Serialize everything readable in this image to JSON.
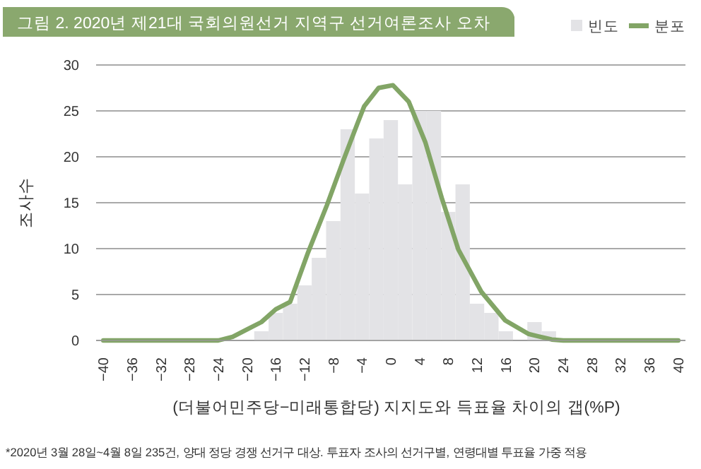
{
  "chart_data": {
    "type": "histogram",
    "title": "그림 2. 2020년 제21대 국회의원선거 지역구 선거여론조사 오차",
    "xlabel": "(더불어민주당−미래통합당) 지지도와 득표율 차이의 갭(%P)",
    "ylabel": "조사수",
    "annotations": [
      "*2020년 3월 28일~4월 8일 235건, 양대 정당 경쟁 선거구 대상. 투표자 조사의 선거구별, 연령대별 투표율 가중 적용"
    ],
    "bins": [
      -19,
      -17,
      -15,
      -13,
      -11,
      -9,
      -7,
      -5,
      -3,
      -1,
      1,
      3,
      5,
      7,
      9,
      11,
      13,
      15,
      17,
      19,
      21,
      23
    ],
    "series": [
      {
        "name": "빈도",
        "color": "#e3e3e6",
        "values": [
          1,
          3,
          4,
          6,
          9,
          13,
          23,
          16,
          22,
          24,
          17,
          25,
          25,
          14,
          17,
          4,
          3,
          1,
          0,
          2,
          1
        ]
      },
      {
        "name": "분포",
        "type": "line",
        "color": "#82a566",
        "x": [
          -40,
          -24,
          -22,
          -20,
          -18,
          -16,
          -14,
          -11.5,
          -8.9,
          -6.6,
          -4.6,
          -3.7,
          -1.7,
          0.3,
          2.5,
          4.8,
          7.1,
          9.4,
          12.6,
          15.9,
          19.2,
          22.4,
          24,
          40
        ],
        "values": [
          0,
          0,
          0.4,
          1.2,
          2,
          3.4,
          4.2,
          9.6,
          14.7,
          19.6,
          23.7,
          25.5,
          27.5,
          27.8,
          26,
          21.6,
          15.5,
          9.9,
          5.3,
          2.2,
          0.7,
          0.1,
          0,
          0
        ]
      }
    ],
    "xlim": [
      -41,
      41
    ],
    "xticks": [
      -40,
      -36,
      -32,
      -28,
      -24,
      -20,
      -16,
      -12,
      -8,
      -4,
      0,
      4,
      8,
      12,
      16,
      20,
      24,
      28,
      32,
      36,
      40
    ],
    "ylim": [
      0,
      30
    ],
    "yticks": [
      0,
      5,
      10,
      15,
      20,
      25,
      30
    ],
    "grid": "y",
    "legend": "top right",
    "marker": "none",
    "line_style": "solid"
  }
}
